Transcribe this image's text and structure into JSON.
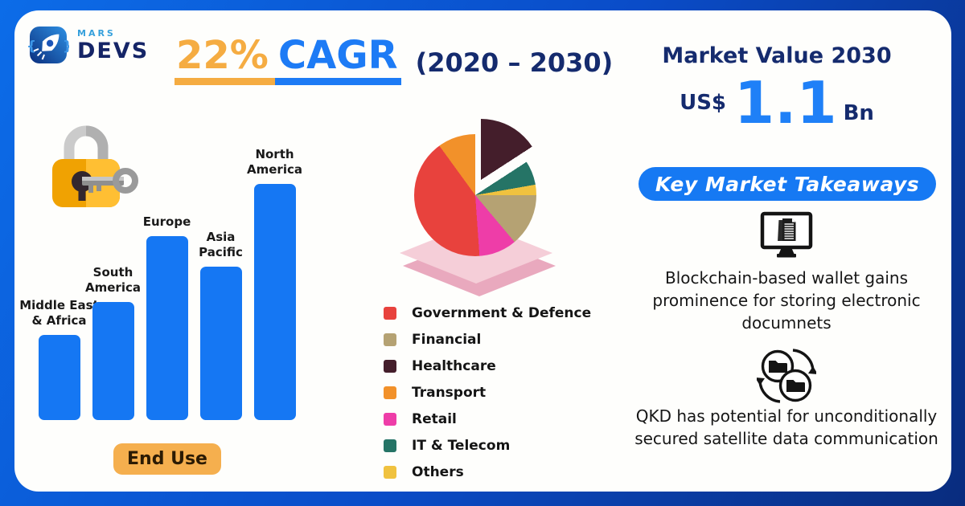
{
  "brand": {
    "line1": "MARS",
    "line2": "DEVS"
  },
  "header": {
    "cagr_value": "22%",
    "cagr_label": "CAGR",
    "period": "(2020 – 2030)"
  },
  "market_value": {
    "title": "Market Value 2030",
    "currency": "US$",
    "amount": "1.1",
    "unit": "Bn"
  },
  "takeaways": {
    "title": "Key Market Takeaways",
    "items": [
      {
        "icon": "monitor-document-icon",
        "text": "Blockchain-based wallet gains prominence for storing electronic documnets"
      },
      {
        "icon": "folder-sync-icon",
        "text": "QKD has potential for unconditionally secured satellite data communication"
      }
    ]
  },
  "colors": {
    "accent_blue": "#1679f3",
    "accent_orange": "#f5ac42",
    "navy_text": "#152b6e",
    "bar_blue": "#1577f3",
    "card_bg": "#fefefc"
  },
  "chart_data": [
    {
      "type": "bar",
      "title": "Regional comparison",
      "categories": [
        "Middle East\n& Africa",
        "South\nAmerica",
        "Europe",
        "Asia\nPacific",
        "North\nAmerica"
      ],
      "values": [
        36,
        50,
        78,
        65,
        100
      ],
      "value_note": "relative bar heights, max = 100 (no numeric axis shown)",
      "bar_color": "#1577f3",
      "footer_label": "End Use",
      "xlabel": "",
      "ylabel": "",
      "grid": false
    },
    {
      "type": "pie",
      "title": "End Use share",
      "segments": [
        {
          "label": "Government & Defence",
          "color": "#e8423d",
          "start_deg": 176,
          "end_deg": 324,
          "share_pct": 41.1
        },
        {
          "label": "Financial",
          "color": "#b5a273",
          "start_deg": 90,
          "end_deg": 140,
          "share_pct": 13.9
        },
        {
          "label": "Healthcare",
          "color": "#441e2b",
          "start_deg": 0,
          "end_deg": 57,
          "share_pct": 15.8,
          "exploded": true
        },
        {
          "label": "Transport",
          "color": "#f2912a",
          "start_deg": 324,
          "end_deg": 360,
          "share_pct": 10.0
        },
        {
          "label": "Retail",
          "color": "#ee3da8",
          "start_deg": 140,
          "end_deg": 176,
          "share_pct": 10.0
        },
        {
          "label": "IT & Telecom",
          "color": "#257466",
          "start_deg": 57,
          "end_deg": 80,
          "share_pct": 6.4
        },
        {
          "label": "Others",
          "color": "#f0c23f",
          "start_deg": 80,
          "end_deg": 90,
          "share_pct": 2.8
        }
      ],
      "legend_position": "below-right"
    }
  ]
}
